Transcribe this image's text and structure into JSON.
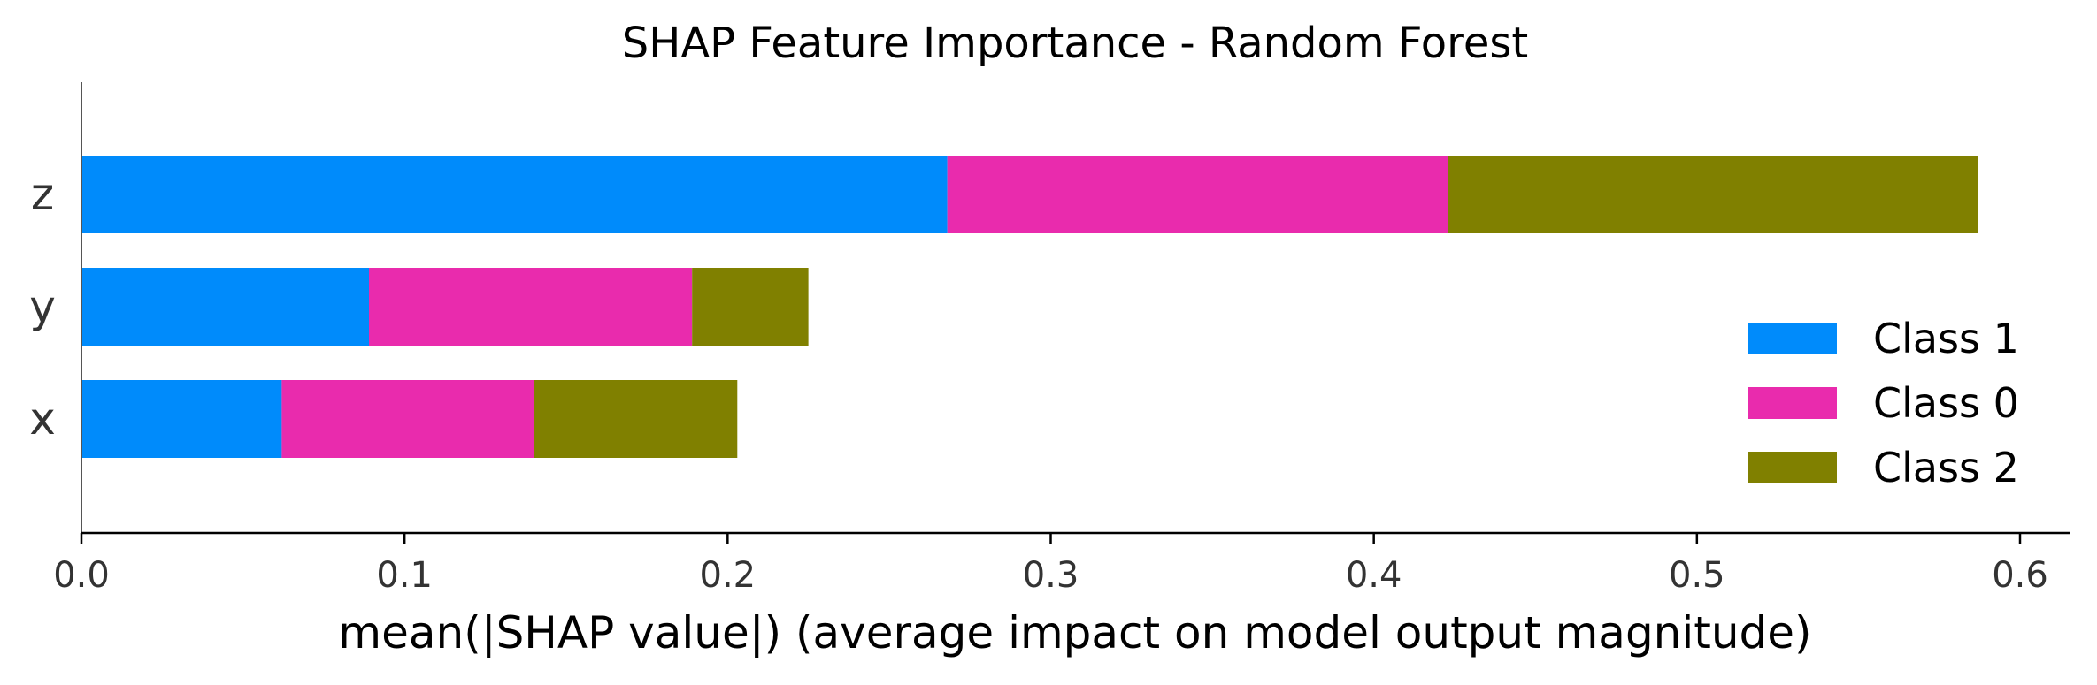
{
  "chart_data": {
    "type": "bar",
    "orientation": "horizontal",
    "stacked": true,
    "title": "SHAP Feature Importance - Random Forest",
    "xlabel": "mean(|SHAP value|) (average impact on model output magnitude)",
    "ylabel": "",
    "categories": [
      "z",
      "y",
      "x"
    ],
    "series": [
      {
        "name": "Class 1",
        "color": "#008bfb",
        "values": [
          0.268,
          0.089,
          0.062
        ]
      },
      {
        "name": "Class 0",
        "color": "#e92bad",
        "values": [
          0.155,
          0.1,
          0.078
        ]
      },
      {
        "name": "Class 2",
        "color": "#808000",
        "values": [
          0.164,
          0.036,
          0.063
        ]
      }
    ],
    "xlim": [
      0,
      0.6
    ],
    "xticks": [
      "0.0",
      "0.1",
      "0.2",
      "0.3",
      "0.4",
      "0.5",
      "0.6"
    ],
    "grid": false,
    "legend_position": "lower-right"
  }
}
